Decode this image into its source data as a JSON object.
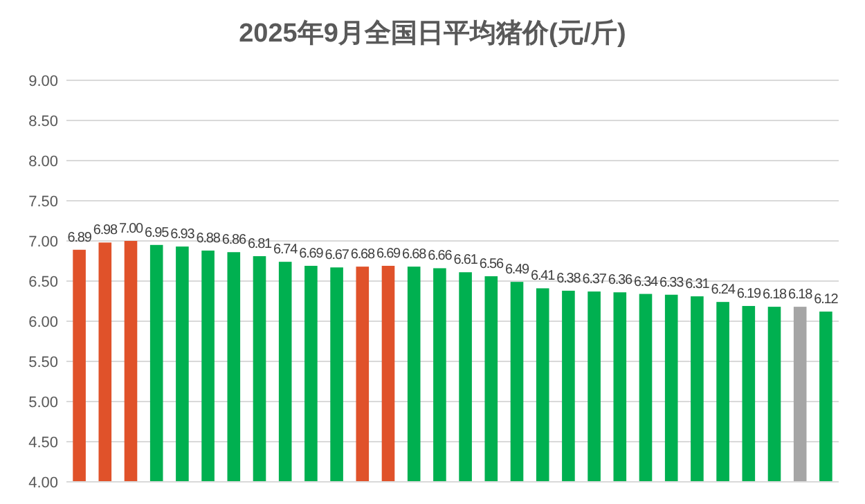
{
  "chart_data": {
    "type": "bar",
    "title": "2025年9月全国日平均猪价(元/斤)",
    "categories": [
      null,
      null,
      null,
      null,
      null,
      null,
      null,
      null,
      null,
      null,
      null,
      null,
      null,
      null,
      null,
      null,
      null,
      null,
      null,
      null,
      null,
      null,
      null,
      null,
      null,
      null,
      null,
      null,
      null,
      null
    ],
    "values": [
      6.89,
      6.98,
      7.0,
      6.95,
      6.93,
      6.88,
      6.86,
      6.81,
      6.74,
      6.69,
      6.67,
      6.68,
      6.69,
      6.68,
      6.66,
      6.61,
      6.56,
      6.49,
      6.41,
      6.38,
      6.37,
      6.36,
      6.34,
      6.33,
      6.31,
      6.24,
      6.19,
      6.18,
      6.18,
      6.12
    ],
    "value_labels": [
      "6.89",
      "6.98",
      "7.00",
      "6.95",
      "6.93",
      "6.88",
      "6.86",
      "6.81",
      "6.74",
      "6.69",
      "6.67",
      "6.68",
      "6.69",
      "6.68",
      "6.66",
      "6.61",
      "6.56",
      "6.49",
      "6.41",
      "6.38",
      "6.37",
      "6.36",
      "6.34",
      "6.33",
      "6.31",
      "6.24",
      "6.19",
      "6.18",
      "6.18",
      "6.12"
    ],
    "colors": [
      "#e0522a",
      "#e0522a",
      "#e0522a",
      "#00b050",
      "#00b050",
      "#00b050",
      "#00b050",
      "#00b050",
      "#00b050",
      "#00b050",
      "#00b050",
      "#e0522a",
      "#e0522a",
      "#00b050",
      "#00b050",
      "#00b050",
      "#00b050",
      "#00b050",
      "#00b050",
      "#00b050",
      "#00b050",
      "#00b050",
      "#00b050",
      "#00b050",
      "#00b050",
      "#00b050",
      "#00b050",
      "#00b050",
      "#a5a5a5",
      "#00b050"
    ],
    "ylim": [
      4,
      9
    ],
    "yticks": [
      {
        "value": 4,
        "label": "4.00"
      },
      {
        "value": 4.5,
        "label": "4.50"
      },
      {
        "value": 5,
        "label": "5.00"
      },
      {
        "value": 5.5,
        "label": "5.50"
      },
      {
        "value": 6,
        "label": "6.00"
      },
      {
        "value": 6.5,
        "label": "6.50"
      },
      {
        "value": 7,
        "label": "7.00"
      },
      {
        "value": 7.5,
        "label": "7.50"
      },
      {
        "value": 8,
        "label": "8.00"
      },
      {
        "value": 8.5,
        "label": "8.50"
      },
      {
        "value": 9,
        "label": "9.00"
      }
    ],
    "grid": "y"
  }
}
